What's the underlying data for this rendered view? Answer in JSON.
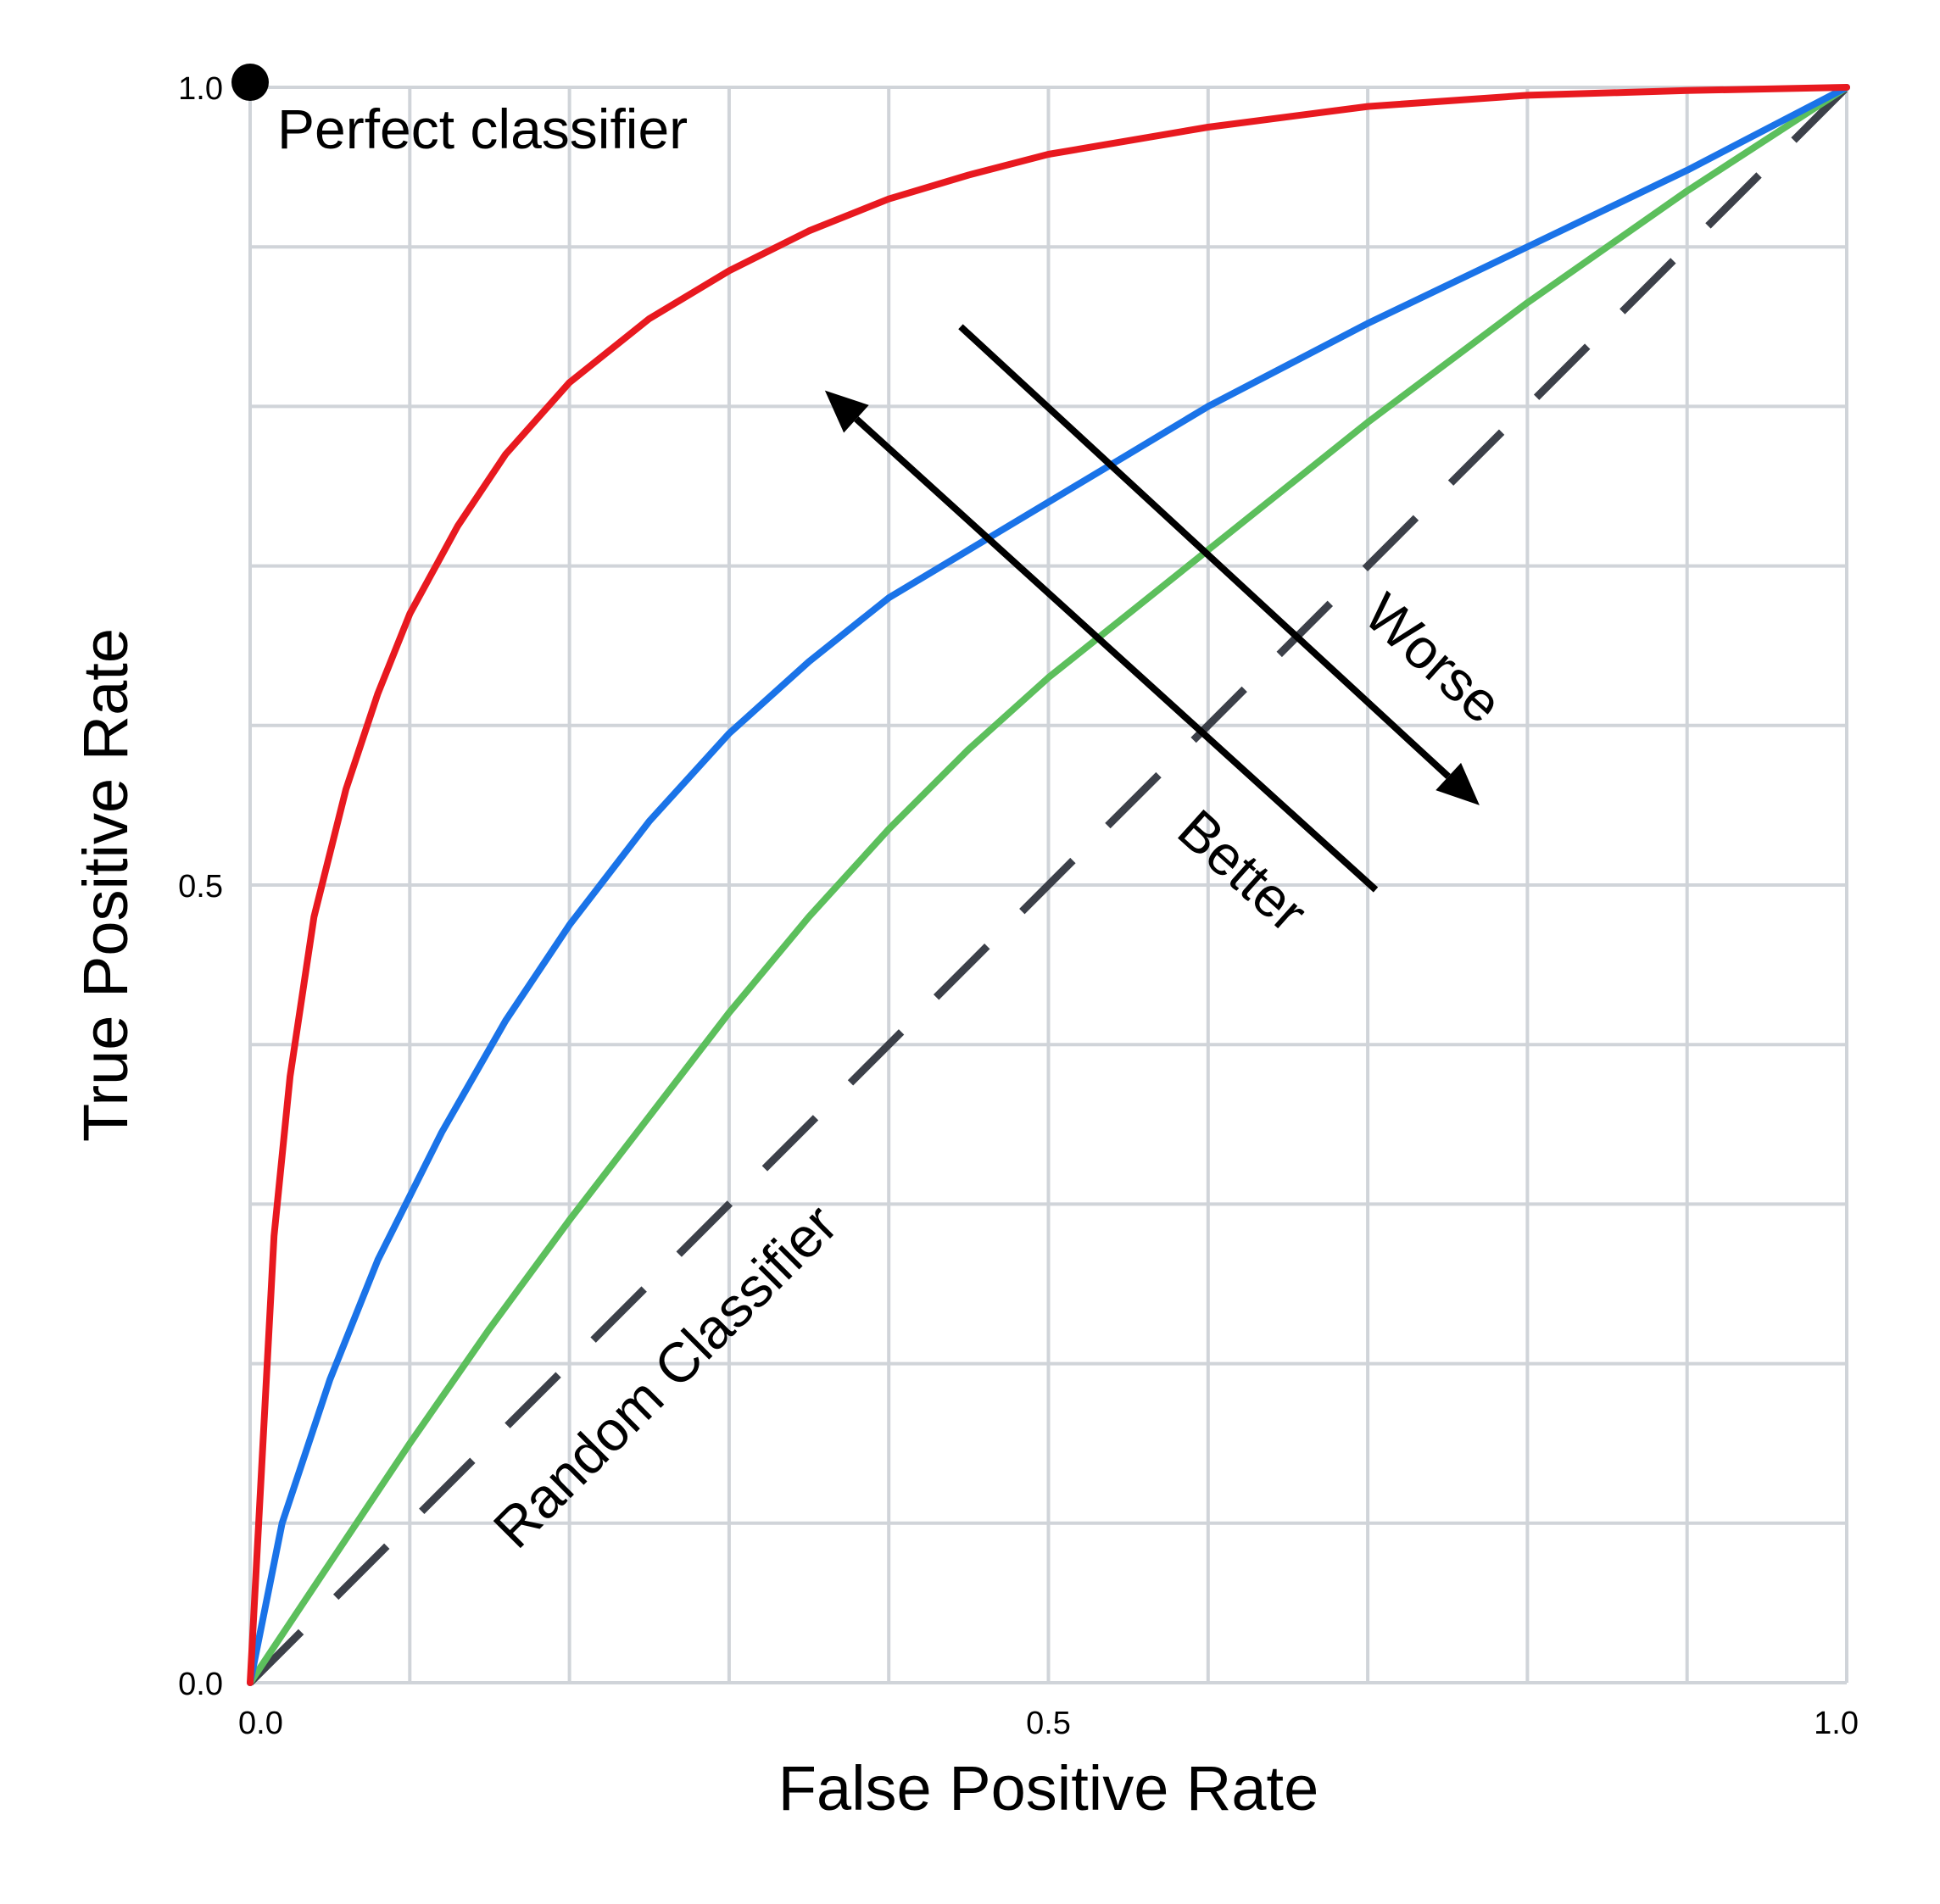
{
  "chart_data": {
    "type": "line",
    "title": "",
    "xlabel": "False Positive Rate",
    "ylabel": "True Positive Rate",
    "xlim": [
      0,
      1
    ],
    "ylim": [
      0,
      1
    ],
    "grid": true,
    "x_ticks": [
      {
        "value": 0.0,
        "label": "0.0"
      },
      {
        "value": 0.5,
        "label": "0.5"
      },
      {
        "value": 1.0,
        "label": "1.0"
      }
    ],
    "y_ticks": [
      {
        "value": 0.0,
        "label": "0.0"
      },
      {
        "value": 0.5,
        "label": "0.5"
      },
      {
        "value": 1.0,
        "label": "1.0"
      }
    ],
    "grid_step": 0.1,
    "series": [
      {
        "color": "#e8191f",
        "x": [
          0,
          0.015,
          0.025,
          0.04,
          0.06,
          0.08,
          0.1,
          0.13,
          0.16,
          0.2,
          0.25,
          0.3,
          0.35,
          0.4,
          0.45,
          0.5,
          0.6,
          0.7,
          0.8,
          0.9,
          1.0
        ],
        "y": [
          0,
          0.28,
          0.38,
          0.48,
          0.56,
          0.62,
          0.67,
          0.725,
          0.77,
          0.815,
          0.855,
          0.885,
          0.91,
          0.93,
          0.945,
          0.958,
          0.975,
          0.988,
          0.995,
          0.998,
          1.0
        ]
      },
      {
        "color": "#1a73e8",
        "x": [
          0,
          0.02,
          0.05,
          0.08,
          0.12,
          0.16,
          0.2,
          0.25,
          0.3,
          0.35,
          0.4,
          0.45,
          0.5,
          0.55,
          0.6,
          0.7,
          0.8,
          0.9,
          1.0
        ],
        "y": [
          0,
          0.1,
          0.19,
          0.265,
          0.345,
          0.415,
          0.475,
          0.54,
          0.595,
          0.64,
          0.68,
          0.71,
          0.74,
          0.77,
          0.8,
          0.852,
          0.9,
          0.948,
          1.0
        ]
      },
      {
        "color": "#5cbf5c",
        "x": [
          0,
          0.05,
          0.1,
          0.15,
          0.2,
          0.25,
          0.3,
          0.35,
          0.4,
          0.45,
          0.5,
          0.55,
          0.6,
          0.7,
          0.8,
          0.9,
          1.0
        ],
        "y": [
          0,
          0.075,
          0.15,
          0.222,
          0.29,
          0.355,
          0.42,
          0.48,
          0.535,
          0.585,
          0.63,
          0.67,
          0.71,
          0.79,
          0.865,
          0.935,
          1.0
        ]
      },
      {
        "color": "#3c4049",
        "dashed": true,
        "x": [
          0,
          1
        ],
        "y": [
          0,
          1
        ]
      }
    ],
    "points": [
      {
        "x": 0,
        "y": 1,
        "label": "Perfect classifier"
      }
    ],
    "annotations": {
      "random": "Random Classifier",
      "better": "Better",
      "worse": "Worse"
    },
    "arrows": [
      {
        "name": "better",
        "from": [
          0.705,
          0.497
        ],
        "to": [
          0.36,
          0.81
        ]
      },
      {
        "name": "worse",
        "from": [
          0.445,
          0.85
        ],
        "to": [
          0.77,
          0.55
        ]
      }
    ]
  }
}
